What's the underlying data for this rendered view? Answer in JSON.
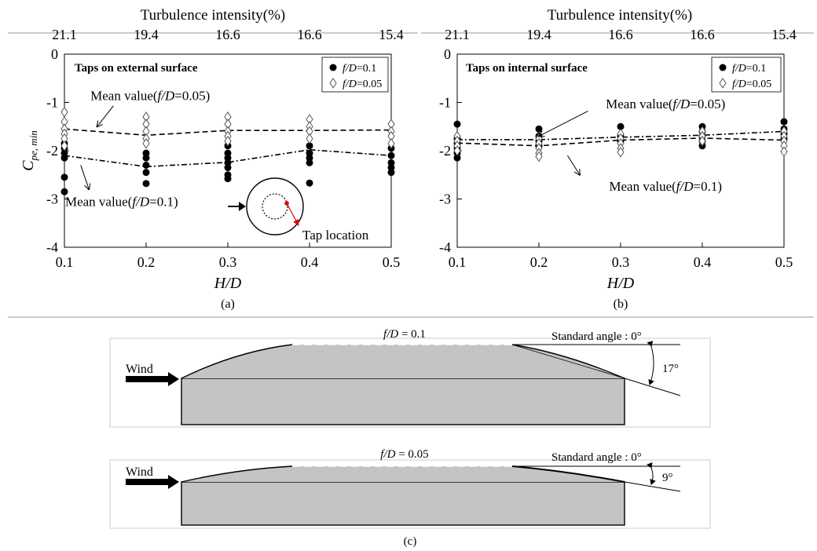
{
  "chart_data": [
    {
      "id": "a",
      "type": "scatter",
      "panel_label": "(a)",
      "title": "",
      "top_axis": {
        "label": "Turbulence intensity(%)",
        "ticks": [
          "21.1",
          "19.4",
          "16.6",
          "16.6",
          "15.4"
        ]
      },
      "xlabel": "H/D",
      "ylabel": "Cpe, min",
      "xlim": [
        0.1,
        0.5
      ],
      "ylim": [
        -4,
        0
      ],
      "xticks": [
        0.1,
        0.2,
        0.3,
        0.4,
        0.5
      ],
      "yticks": [
        0,
        -1,
        -2,
        -3,
        -4
      ],
      "panel_note": "Taps on external surface",
      "legend": {
        "placement": "top-right",
        "entries": [
          {
            "pre": "f/D",
            "post": "=0.1",
            "marker": "filled-circle"
          },
          {
            "pre": "f/D",
            "post": "=0.05",
            "marker": "open-diamond"
          }
        ]
      },
      "series": [
        {
          "name": "f/D=0.1",
          "marker": "filled-circle",
          "points": [
            [
              0.1,
              -1.85
            ],
            [
              0.1,
              -1.95
            ],
            [
              0.1,
              -2.05
            ],
            [
              0.1,
              -2.15
            ],
            [
              0.1,
              -2.55
            ],
            [
              0.1,
              -2.85
            ],
            [
              0.2,
              -2.05
            ],
            [
              0.2,
              -2.15
            ],
            [
              0.2,
              -2.3
            ],
            [
              0.2,
              -2.45
            ],
            [
              0.2,
              -2.68
            ],
            [
              0.3,
              -1.9
            ],
            [
              0.3,
              -2.05
            ],
            [
              0.3,
              -2.15
            ],
            [
              0.3,
              -2.25
            ],
            [
              0.3,
              -2.35
            ],
            [
              0.3,
              -2.5
            ],
            [
              0.3,
              -2.58
            ],
            [
              0.4,
              -1.9
            ],
            [
              0.4,
              -2.05
            ],
            [
              0.4,
              -2.15
            ],
            [
              0.4,
              -2.25
            ],
            [
              0.4,
              -2.67
            ],
            [
              0.5,
              -1.95
            ],
            [
              0.5,
              -2.1
            ],
            [
              0.5,
              -2.25
            ],
            [
              0.5,
              -2.35
            ],
            [
              0.5,
              -2.45
            ]
          ]
        },
        {
          "name": "f/D=0.05",
          "marker": "open-diamond",
          "points": [
            [
              0.1,
              -1.2
            ],
            [
              0.1,
              -1.4
            ],
            [
              0.1,
              -1.55
            ],
            [
              0.1,
              -1.65
            ],
            [
              0.1,
              -1.75
            ],
            [
              0.1,
              -1.9
            ],
            [
              0.2,
              -1.3
            ],
            [
              0.2,
              -1.45
            ],
            [
              0.2,
              -1.6
            ],
            [
              0.2,
              -1.75
            ],
            [
              0.2,
              -1.85
            ],
            [
              0.3,
              -1.3
            ],
            [
              0.3,
              -1.45
            ],
            [
              0.3,
              -1.6
            ],
            [
              0.3,
              -1.7
            ],
            [
              0.3,
              -1.8
            ],
            [
              0.4,
              -1.35
            ],
            [
              0.4,
              -1.5
            ],
            [
              0.4,
              -1.6
            ],
            [
              0.4,
              -1.75
            ],
            [
              0.5,
              -1.45
            ],
            [
              0.5,
              -1.6
            ],
            [
              0.5,
              -1.7
            ],
            [
              0.5,
              -1.85
            ]
          ]
        }
      ],
      "mean_lines": [
        {
          "name": "f/D=0.05",
          "style": "dashed",
          "points": [
            [
              0.1,
              -1.55
            ],
            [
              0.2,
              -1.68
            ],
            [
              0.3,
              -1.58
            ],
            [
              0.4,
              -1.58
            ],
            [
              0.5,
              -1.57
            ]
          ]
        },
        {
          "name": "f/D=0.1",
          "style": "dash-dot",
          "points": [
            [
              0.1,
              -2.1
            ],
            [
              0.2,
              -2.33
            ],
            [
              0.3,
              -2.24
            ],
            [
              0.4,
              -1.98
            ],
            [
              0.5,
              -2.1
            ]
          ]
        }
      ],
      "annotations": [
        {
          "pre": "Mean value(",
          "it": "f/D",
          "post": "=0.05)",
          "at": [
            0.205,
            -0.95
          ],
          "arrow_from": [
            0.16,
            -1.07
          ],
          "arrow_to": [
            0.14,
            -1.5
          ],
          "anchor": "middle"
        },
        {
          "pre": "Mean value(",
          "it": "f/D",
          "post": "=0.1)",
          "at": [
            0.17,
            -3.15
          ],
          "arrow_from": [
            0.12,
            -2.3
          ],
          "arrow_to": [
            0.13,
            -2.8
          ],
          "anchor": "middle"
        }
      ],
      "inset": {
        "label": "Tap location"
      }
    },
    {
      "id": "b",
      "type": "scatter",
      "panel_label": "(b)",
      "title": "",
      "top_axis": {
        "label": "Turbulence intensity(%)",
        "ticks": [
          "21.1",
          "19.4",
          "16.6",
          "16.6",
          "15.4"
        ]
      },
      "xlabel": "H/D",
      "ylabel": "",
      "xlim": [
        0.1,
        0.5
      ],
      "ylim": [
        -4,
        0
      ],
      "xticks": [
        0.1,
        0.2,
        0.3,
        0.4,
        0.5
      ],
      "yticks": [
        0,
        -1,
        -2,
        -3,
        -4
      ],
      "panel_note": "Taps on internal surface",
      "legend": {
        "placement": "top-right",
        "entries": [
          {
            "pre": "f/D",
            "post": "=0.1",
            "marker": "filled-circle"
          },
          {
            "pre": "f/D",
            "post": "=0.05",
            "marker": "open-diamond"
          }
        ]
      },
      "series": [
        {
          "name": "f/D=0.1",
          "marker": "filled-circle",
          "points": [
            [
              0.1,
              -1.45
            ],
            [
              0.1,
              -1.75
            ],
            [
              0.1,
              -1.85
            ],
            [
              0.1,
              -1.95
            ],
            [
              0.1,
              -2.05
            ],
            [
              0.1,
              -2.15
            ],
            [
              0.2,
              -1.55
            ],
            [
              0.2,
              -1.7
            ],
            [
              0.2,
              -1.8
            ],
            [
              0.2,
              -1.9
            ],
            [
              0.3,
              -1.5
            ],
            [
              0.3,
              -1.7
            ],
            [
              0.3,
              -1.8
            ],
            [
              0.4,
              -1.5
            ],
            [
              0.4,
              -1.6
            ],
            [
              0.4,
              -1.7
            ],
            [
              0.4,
              -1.8
            ],
            [
              0.4,
              -1.9
            ],
            [
              0.5,
              -1.4
            ],
            [
              0.5,
              -1.55
            ],
            [
              0.5,
              -1.65
            ],
            [
              0.5,
              -1.75
            ]
          ]
        },
        {
          "name": "f/D=0.05",
          "marker": "open-diamond",
          "points": [
            [
              0.1,
              -1.7
            ],
            [
              0.1,
              -1.8
            ],
            [
              0.1,
              -1.9
            ],
            [
              0.1,
              -2.0
            ],
            [
              0.2,
              -1.75
            ],
            [
              0.2,
              -1.85
            ],
            [
              0.2,
              -1.95
            ],
            [
              0.2,
              -2.05
            ],
            [
              0.2,
              -2.12
            ],
            [
              0.3,
              -1.65
            ],
            [
              0.3,
              -1.75
            ],
            [
              0.3,
              -1.85
            ],
            [
              0.3,
              -1.95
            ],
            [
              0.3,
              -2.03
            ],
            [
              0.4,
              -1.6
            ],
            [
              0.4,
              -1.7
            ],
            [
              0.4,
              -1.8
            ],
            [
              0.5,
              -1.6
            ],
            [
              0.5,
              -1.7
            ],
            [
              0.5,
              -1.8
            ],
            [
              0.5,
              -1.9
            ],
            [
              0.5,
              -2.02
            ]
          ]
        }
      ],
      "mean_lines": [
        {
          "name": "f/D=0.05",
          "style": "dashed",
          "points": [
            [
              0.1,
              -1.84
            ],
            [
              0.2,
              -1.9
            ],
            [
              0.3,
              -1.78
            ],
            [
              0.4,
              -1.74
            ],
            [
              0.5,
              -1.78
            ]
          ]
        },
        {
          "name": "f/D=0.1",
          "style": "dash-dot",
          "points": [
            [
              0.1,
              -1.77
            ],
            [
              0.2,
              -1.77
            ],
            [
              0.3,
              -1.72
            ],
            [
              0.4,
              -1.68
            ],
            [
              0.5,
              -1.6
            ]
          ]
        }
      ],
      "annotations": [
        {
          "pre": "Mean value(",
          "it": "f/D",
          "post": "=0.05)",
          "at": [
            0.355,
            -1.12
          ],
          "arrow_from": [
            0.26,
            -1.18
          ],
          "arrow_to": [
            0.2,
            -1.7
          ],
          "anchor": "middle"
        },
        {
          "pre": "Mean value(",
          "it": "f/D",
          "post": "=0.1)",
          "at": [
            0.355,
            -2.83
          ],
          "arrow_from": [
            0.235,
            -2.1
          ],
          "arrow_to": [
            0.25,
            -2.5
          ],
          "anchor": "middle"
        }
      ]
    }
  ],
  "diagram": {
    "panel_label": "(c)",
    "shapes": [
      {
        "id": "0.1",
        "label_pre": "f/D",
        "label_post": " = 0.1",
        "wind": "Wind",
        "standard": "Standard angle : 0°",
        "angle": "17°"
      },
      {
        "id": "0.05",
        "label_pre": "f/D",
        "label_post": " = 0.05",
        "wind": "Wind",
        "standard": "Standard angle : 0°",
        "angle": "9°"
      }
    ]
  }
}
